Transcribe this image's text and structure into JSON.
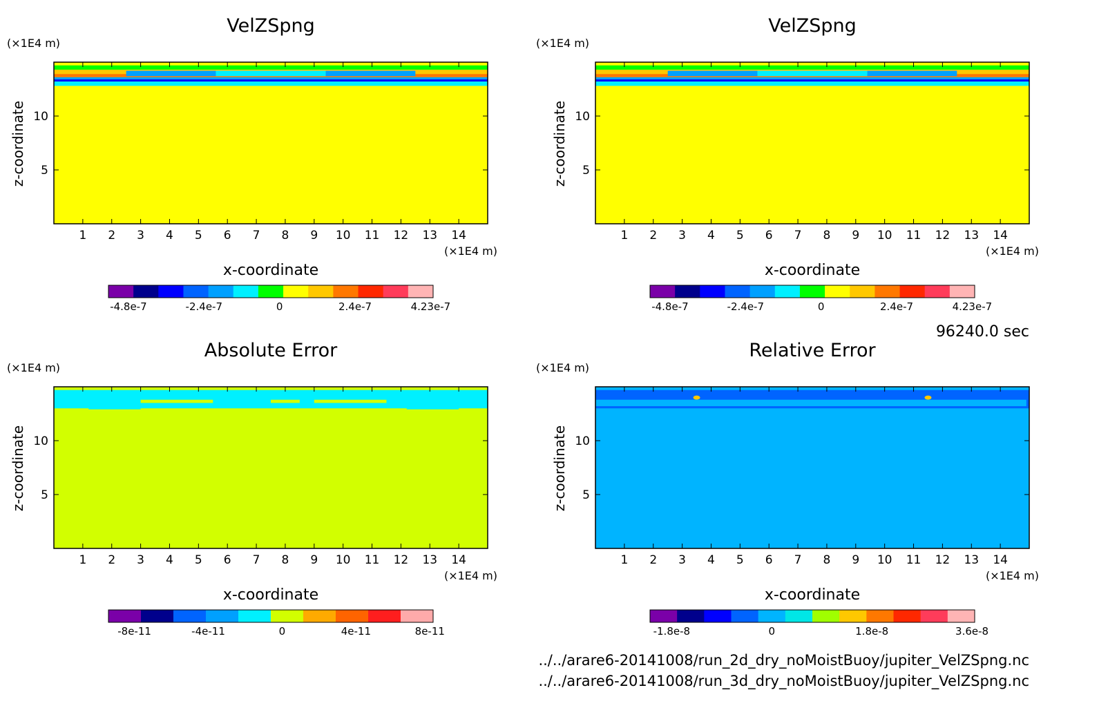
{
  "time_label": "96240.0 sec",
  "files": [
    "../../arare6-20141008/run_2d_dry_noMoistBuoy/jupiter_VelZSpng.nc",
    "../../arare6-20141008/run_3d_dry_noMoistBuoy/jupiter_VelZSpng.nc"
  ],
  "chart_data": [
    {
      "type": "heatmap",
      "title": "VelZSpng",
      "xlabel": "x-coordinate",
      "ylabel": "z-coordinate",
      "x_unit": "(×1E4 m)",
      "z_unit": "(×1E4 m)",
      "xlim": [
        0,
        15
      ],
      "ylim": [
        0,
        15
      ],
      "xticks": [
        "1",
        "2",
        "3",
        "4",
        "5",
        "6",
        "7",
        "8",
        "9",
        "10",
        "11",
        "12",
        "13",
        "14"
      ],
      "yticks": [
        "5",
        "10"
      ],
      "grid": false,
      "background_value": "0",
      "colorbar": {
        "colors": [
          "#7a00a8",
          "#00008c",
          "#0000ff",
          "#0064ff",
          "#00a0ff",
          "#00f0ff",
          "#00ff00",
          "#ffff00",
          "#ffc800",
          "#ff7800",
          "#ff2800",
          "#ff3c5a",
          "#ffb4b4"
        ],
        "ticks": [
          "-4.8e-7",
          "-2.4e-7",
          "0",
          "2.4e-7",
          "4.23e-7"
        ]
      },
      "top_band_layers": [
        {
          "z_top": 14.7,
          "z_bottom": 14.3,
          "color": "#00ff00"
        },
        {
          "z_top": 14.3,
          "z_bottom": 13.9,
          "color": "#ffc800"
        },
        {
          "z_top": 13.9,
          "z_bottom": 13.6,
          "color": "#ff7800"
        },
        {
          "z_top": 13.6,
          "z_bottom": 13.4,
          "color": "#00a0ff"
        },
        {
          "z_top": 13.4,
          "z_bottom": 13.2,
          "color": "#0000ff"
        },
        {
          "z_top": 13.2,
          "z_bottom": 12.8,
          "color": "#00f0ff"
        }
      ]
    },
    {
      "type": "heatmap",
      "title": "VelZSpng",
      "xlabel": "x-coordinate",
      "ylabel": "z-coordinate",
      "x_unit": "(×1E4 m)",
      "z_unit": "(×1E4 m)",
      "xlim": [
        0,
        15
      ],
      "ylim": [
        0,
        15
      ],
      "xticks": [
        "1",
        "2",
        "3",
        "4",
        "5",
        "6",
        "7",
        "8",
        "9",
        "10",
        "11",
        "12",
        "13",
        "14"
      ],
      "yticks": [
        "5",
        "10"
      ],
      "grid": false,
      "background_value": "0",
      "colorbar": {
        "colors": [
          "#7a00a8",
          "#00008c",
          "#0000ff",
          "#0064ff",
          "#00a0ff",
          "#00f0ff",
          "#00ff00",
          "#ffff00",
          "#ffc800",
          "#ff7800",
          "#ff2800",
          "#ff3c5a",
          "#ffb4b4"
        ],
        "ticks": [
          "-4.8e-7",
          "-2.4e-7",
          "0",
          "2.4e-7",
          "4.23e-7"
        ]
      },
      "top_band_layers": [
        {
          "z_top": 14.7,
          "z_bottom": 14.3,
          "color": "#00ff00"
        },
        {
          "z_top": 14.3,
          "z_bottom": 13.9,
          "color": "#ffc800"
        },
        {
          "z_top": 13.9,
          "z_bottom": 13.6,
          "color": "#ff7800"
        },
        {
          "z_top": 13.6,
          "z_bottom": 13.4,
          "color": "#00a0ff"
        },
        {
          "z_top": 13.4,
          "z_bottom": 13.2,
          "color": "#0000ff"
        },
        {
          "z_top": 13.2,
          "z_bottom": 12.8,
          "color": "#00f0ff"
        }
      ]
    },
    {
      "type": "heatmap",
      "title": "Absolute Error",
      "xlabel": "x-coordinate",
      "ylabel": "z-coordinate",
      "x_unit": "(×1E4 m)",
      "z_unit": "(×1E4 m)",
      "xlim": [
        0,
        15
      ],
      "ylim": [
        0,
        15
      ],
      "xticks": [
        "1",
        "2",
        "3",
        "4",
        "5",
        "6",
        "7",
        "8",
        "9",
        "10",
        "11",
        "12",
        "13",
        "14"
      ],
      "yticks": [
        "5",
        "10"
      ],
      "grid": false,
      "background_value": "0",
      "colorbar": {
        "colors": [
          "#7a00a8",
          "#00008c",
          "#0064ff",
          "#00a0ff",
          "#00f0ff",
          "#d2ff00",
          "#ffaa00",
          "#ff6400",
          "#ff1e1e",
          "#ffaaaa"
        ],
        "ticks": [
          "-8e-11",
          "-4e-11",
          "0",
          "4e-11",
          "8e-11"
        ]
      },
      "top_band_layers": [
        {
          "z_top": 14.7,
          "z_bottom": 13.0,
          "color": "#00f0ff"
        }
      ]
    },
    {
      "type": "heatmap",
      "title": "Relative Error",
      "xlabel": "x-coordinate",
      "ylabel": "z-coordinate",
      "x_unit": "(×1E4 m)",
      "z_unit": "(×1E4 m)",
      "xlim": [
        0,
        15
      ],
      "ylim": [
        0,
        15
      ],
      "xticks": [
        "1",
        "2",
        "3",
        "4",
        "5",
        "6",
        "7",
        "8",
        "9",
        "10",
        "11",
        "12",
        "13",
        "14"
      ],
      "yticks": [
        "5",
        "10"
      ],
      "grid": false,
      "background_value": "0",
      "colorbar": {
        "colors": [
          "#7a00a8",
          "#00008c",
          "#0000ff",
          "#0064ff",
          "#00b4ff",
          "#00e6e6",
          "#a0ff00",
          "#ffc800",
          "#ff7800",
          "#ff2800",
          "#ff3c5a",
          "#ffb4b4"
        ],
        "ticks": [
          "-1.8e-8",
          "0",
          "1.8e-8",
          "3.6e-8"
        ]
      },
      "top_band_layers": [
        {
          "z_top": 14.7,
          "z_bottom": 13.0,
          "color": "#0064ff"
        }
      ]
    }
  ]
}
